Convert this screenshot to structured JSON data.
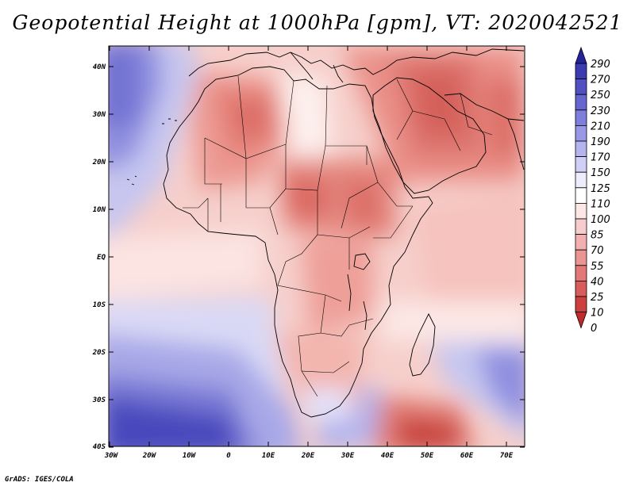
{
  "title": "Geopotential Height at 1000hPa [gpm], VT: 2020042521",
  "credit": "GrADS: IGES/COLA",
  "map": {
    "lat_labels": [
      "40N",
      "30N",
      "20N",
      "10N",
      "EQ",
      "10S",
      "20S",
      "30S",
      "40S"
    ],
    "lon_labels": [
      "30W",
      "20W",
      "10W",
      "0",
      "10E",
      "20E",
      "30E",
      "40E",
      "50E",
      "60E",
      "70E"
    ]
  },
  "colorbar": {
    "levels": [
      "290",
      "270",
      "250",
      "230",
      "210",
      "190",
      "170",
      "150",
      "125",
      "110",
      "100",
      "85",
      "70",
      "55",
      "40",
      "25",
      "10",
      "0"
    ],
    "colors": [
      "#24249a",
      "#3b3bb2",
      "#5050c4",
      "#6666d0",
      "#7e7edc",
      "#9898e6",
      "#b4b4ef",
      "#d0d0f7",
      "#ececfc",
      "#ffffff",
      "#fce6e6",
      "#f8cccc",
      "#f2b0b0",
      "#eb9494",
      "#e27878",
      "#d85c5c",
      "#cc4040",
      "#bf2a2a"
    ]
  },
  "colors": {
    "land_outline": "#000000",
    "ocean_base": "#f4c6c2"
  }
}
